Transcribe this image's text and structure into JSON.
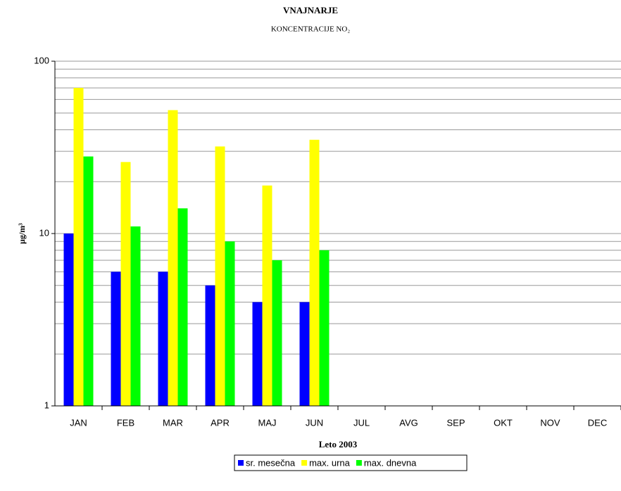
{
  "chart_data": {
    "type": "bar",
    "title": "VNAJNARJE",
    "subtitle": "KONCENTRACIJE NO₂",
    "y_label": "μg/m³",
    "x_label": "Leto 2003",
    "categories": [
      "JAN",
      "FEB",
      "MAR",
      "APR",
      "MAJ",
      "JUN",
      "JUL",
      "AVG",
      "SEP",
      "OKT",
      "NOV",
      "DEC"
    ],
    "series": [
      {
        "name": "sr. mesečna",
        "color": "#0000ff",
        "values": [
          10,
          6,
          6,
          5,
          4,
          4,
          null,
          null,
          null,
          null,
          null,
          null
        ]
      },
      {
        "name": "max. urna",
        "color": "#ffff00",
        "values": [
          70,
          26,
          52,
          32,
          19,
          35,
          null,
          null,
          null,
          null,
          null,
          null
        ]
      },
      {
        "name": "max. dnevna",
        "color": "#00ff00",
        "values": [
          28,
          11,
          14,
          9,
          7,
          8,
          null,
          null,
          null,
          null,
          null,
          null
        ]
      }
    ],
    "ylim": [
      1,
      100
    ],
    "yticks": [
      1,
      10,
      100
    ],
    "log_scale": true,
    "grid": true,
    "minor_grid": true,
    "legend": "bottom"
  }
}
